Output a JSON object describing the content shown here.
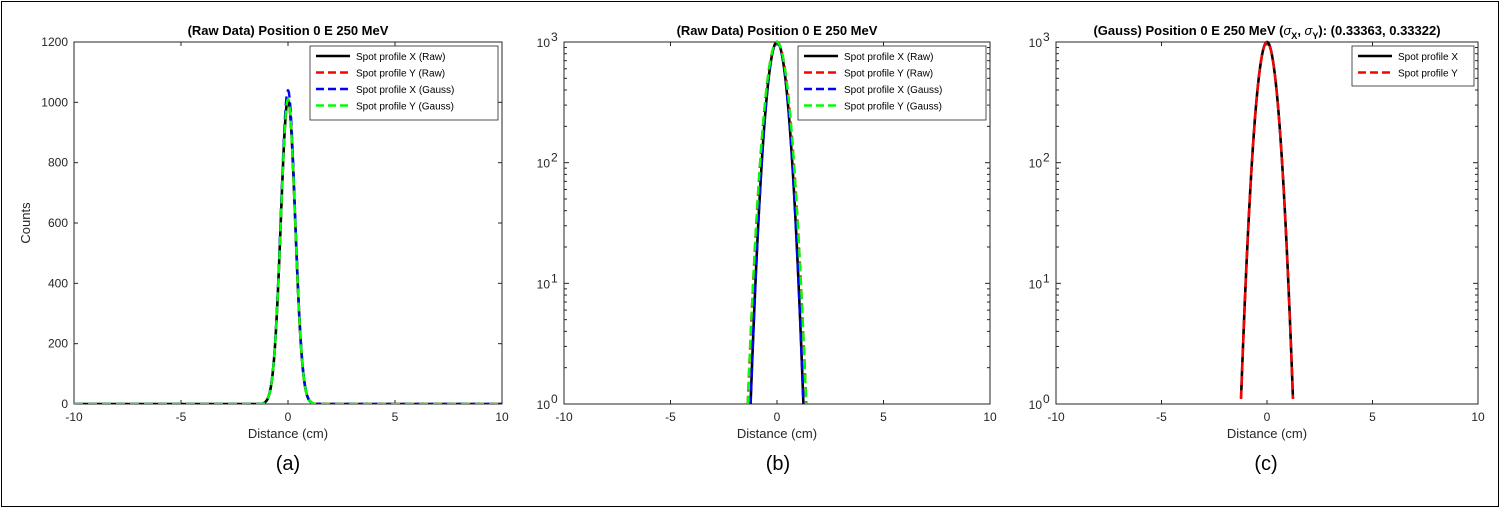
{
  "chart_data": [
    {
      "type": "line",
      "panel": "(a)",
      "title": "(Raw Data) Position 0 E 250 MeV",
      "xlabel": "Distance (cm)",
      "ylabel": "Counts",
      "xlim": [
        -10,
        10
      ],
      "ylim": [
        0,
        1200
      ],
      "yscale": "linear",
      "xticks": [
        "-10",
        "-5",
        "0",
        "5",
        "10"
      ],
      "yticks": [
        "0",
        "200",
        "400",
        "600",
        "800",
        "1000",
        "1200"
      ],
      "legend": "top-right",
      "grid": false,
      "series": [
        {
          "name": "Spot profile X (Raw)",
          "color": "#000000",
          "dash": "solid",
          "peak": 1010,
          "sigma": 0.3336,
          "xrange": [
            -10,
            10
          ]
        },
        {
          "name": "Spot profile Y (Raw)",
          "color": "#ff0000",
          "dash": "dashed",
          "peak": 1010,
          "sigma": 0.3332,
          "xrange": [
            -10,
            10
          ]
        },
        {
          "name": "Spot profile X (Gauss)",
          "color": "#0000ff",
          "dash": "dashed",
          "peak": 1040,
          "sigma": 0.3336,
          "xrange": [
            -10,
            10
          ]
        },
        {
          "name": "Spot profile Y (Gauss)",
          "color": "#00ff00",
          "dash": "dashed",
          "peak": 1010,
          "sigma": 0.3332,
          "xrange": [
            -10,
            10
          ]
        }
      ]
    },
    {
      "type": "line",
      "panel": "(b)",
      "title": "(Raw Data) Position 0 E 250 MeV",
      "xlabel": "Distance (cm)",
      "ylabel": "",
      "xlim": [
        -10,
        10
      ],
      "ylim": [
        1,
        1000
      ],
      "yscale": "log",
      "xticks": [
        "-10",
        "-5",
        "0",
        "5",
        "10"
      ],
      "yticks": [
        "10",
        "10",
        "10",
        "10"
      ],
      "ytick_exponents": [
        "0",
        "1",
        "2",
        "3"
      ],
      "legend": "top-right",
      "grid": false,
      "series": [
        {
          "name": "Spot profile X (Raw)",
          "color": "#000000",
          "dash": "solid",
          "peak": 1000,
          "sigma": 0.3336,
          "xrange": [
            -1.3,
            1.3
          ]
        },
        {
          "name": "Spot profile Y (Raw)",
          "color": "#ff0000",
          "dash": "dashed",
          "peak": 1000,
          "sigma": 0.37,
          "xrange": [
            -1.45,
            1.45
          ]
        },
        {
          "name": "Spot profile X (Gauss)",
          "color": "#0000ff",
          "dash": "dashed",
          "peak": 1000,
          "sigma": 0.3336,
          "xrange": [
            -1.3,
            1.3
          ]
        },
        {
          "name": "Spot profile Y (Gauss)",
          "color": "#00ff00",
          "dash": "dashed",
          "peak": 1000,
          "sigma": 0.37,
          "xrange": [
            -1.4,
            1.4
          ]
        }
      ]
    },
    {
      "type": "line",
      "panel": "(c)",
      "title_prefix": "(Gauss) Position 0 E 250 MeV (",
      "title_sym": "σ",
      "title_sub_x": "X",
      "title_sub_y": "Y",
      "title_sep": ", ",
      "title_suffix": "): (0.33363, 0.33322)",
      "xlabel": "Distance (cm)",
      "ylabel": "",
      "xlim": [
        -10,
        10
      ],
      "ylim": [
        1,
        1000
      ],
      "yscale": "log",
      "xticks": [
        "-10",
        "-5",
        "0",
        "5",
        "10"
      ],
      "yticks": [
        "10",
        "10",
        "10",
        "10"
      ],
      "ytick_exponents": [
        "0",
        "1",
        "2",
        "3"
      ],
      "legend": "top-right",
      "grid": false,
      "series": [
        {
          "name": "Spot profile X",
          "color": "#000000",
          "dash": "solid",
          "peak": 1000,
          "sigma": 0.33363,
          "xrange": [
            -1.23,
            1.23
          ]
        },
        {
          "name": "Spot profile Y",
          "color": "#ff0000",
          "dash": "dashed",
          "peak": 1000,
          "sigma": 0.33322,
          "xrange": [
            -1.23,
            1.23
          ]
        }
      ]
    }
  ],
  "captions": [
    "(a)",
    "(b)",
    "(c)"
  ]
}
